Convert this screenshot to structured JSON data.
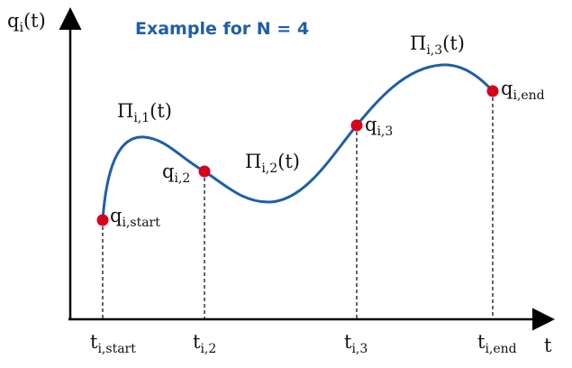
{
  "diagram": {
    "title": "Example for N = 4",
    "y_axis": {
      "main": "q",
      "sub": "i",
      "tail": "(t)"
    },
    "x_axis_label": "t",
    "segments": [
      {
        "main": "Π",
        "sub": "i,1",
        "tail": "(t)"
      },
      {
        "main": "Π",
        "sub": "i,2",
        "tail": "(t)"
      },
      {
        "main": "Π",
        "sub": "i,3",
        "tail": "(t)"
      }
    ],
    "points": [
      {
        "main": "q",
        "sub": "i,start"
      },
      {
        "main": "q",
        "sub": "i,2"
      },
      {
        "main": "q",
        "sub": "i,3"
      },
      {
        "main": "q",
        "sub": "i,end"
      }
    ],
    "ticks": [
      {
        "main": "t",
        "sub": "i,start"
      },
      {
        "main": "t",
        "sub": "i,2"
      },
      {
        "main": "t",
        "sub": "i,3"
      },
      {
        "main": "t",
        "sub": "i,end"
      }
    ],
    "colors": {
      "curve": "#1f5ea8",
      "point": "#d9001b",
      "title": "#1f5ea8",
      "axis": "#000000"
    }
  }
}
